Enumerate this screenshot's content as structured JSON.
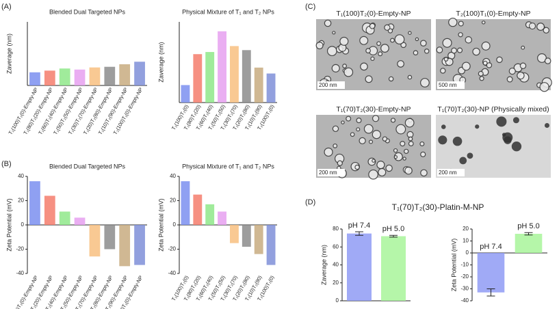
{
  "panel_labels": [
    "(A)",
    "(B)",
    "(C)",
    "(D)"
  ],
  "panel_d_title": "T₁(70)T₂(30)-Platin-M-NP",
  "micrographs": [
    {
      "caption": "T₁(100)T₂(0)-Empty-NP",
      "scale": "200 nm"
    },
    {
      "caption": "T₂(100)T₁(0)-Empty-NP",
      "scale": "500 nm"
    },
    {
      "caption": "T₁(70)T₂(30)-Empty-NP",
      "scale": "200 nm"
    },
    {
      "caption": "T₁(70)T₂(30)-NP (Physically mixed)",
      "scale": "200 nm"
    }
  ],
  "chart_data": [
    {
      "type": "bar",
      "title": "Blended Dual Targeted NPs",
      "ylabel": "Zaverage (nm)",
      "categories": [
        "T₁(100)T₂(0)-Empty-NP",
        "T₁(80)T₂(20)-Empty-NP",
        "T₁(60)T₂(40)-Empty-NP",
        "T₁(50)T₂(50)-Empty-NP",
        "T₁(30)T₂(70)-Empty-NP",
        "T₁(20)T₂(80)-Empty-NP",
        "T₁(10)T₂(90)-Empty-NP",
        "T₂(100)T₁(0)-Empty-NP"
      ],
      "values": [
        62,
        70,
        80,
        75,
        85,
        88,
        100,
        112
      ],
      "colors": [
        "#7b8ff0",
        "#f47c6c",
        "#8fe88a",
        "#e6a0f0",
        "#f8c080",
        "#8c8c8c",
        "#c8ab80",
        "#7f8fd8"
      ],
      "ylim": [
        0,
        300
      ],
      "yticks": []
    },
    {
      "type": "bar",
      "title": "Physical Mixture of T₁ and T₂ NPs",
      "ylabel": "Zaverage (nm)",
      "categories": [
        "T₁(100)T₂(0)",
        "T₁(80)T₂(20)",
        "T₁(60)T₂(40)",
        "T₁(50)T₂(50)",
        "T₁(30)T₂(70)",
        "T₁(20)T₂(80)",
        "T₁(10)T₂(90)",
        "T₂(100)T₁(0)"
      ],
      "values": [
        65,
        180,
        188,
        265,
        210,
        195,
        130,
        108
      ],
      "colors": [
        "#7b8ff0",
        "#f47c6c",
        "#8fe88a",
        "#e6a0f0",
        "#f8c080",
        "#8c8c8c",
        "#c8ab80",
        "#7f8fd8"
      ],
      "ylim": [
        0,
        300
      ],
      "yticks": []
    },
    {
      "type": "bar",
      "title": "Blended Dual Targeted NPs",
      "ylabel": "Zeta Potential (mV)",
      "categories": [
        "T₁(100)T₂(0)-Empty-NP",
        "T₁(80)T₂(20)-Empty-NP",
        "T₁(60)T₂(40)-Empty-NP",
        "T₁(50)T₂(50)-Empty-NP",
        "T₁(30)T₂(70)-Empty-NP",
        "T₁(20)T₂(80)-Empty-NP",
        "T₁(10)T₂(90)-Empty-NP",
        "T₂(100)T₁(0)-Empty-NP"
      ],
      "values": [
        36,
        24,
        11,
        6,
        -26,
        -20,
        -34,
        -33
      ],
      "colors": [
        "#7b8ff0",
        "#f47c6c",
        "#8fe88a",
        "#e6a0f0",
        "#f8c080",
        "#8c8c8c",
        "#c8ab80",
        "#7f8fd8"
      ],
      "ylim": [
        -40,
        40
      ],
      "yticks": [
        -40,
        -20,
        0,
        20,
        40
      ]
    },
    {
      "type": "bar",
      "title": "Physical Mixture of T₁ and T₂ NPs",
      "ylabel": "Zeta Potential (mV)",
      "categories": [
        "T₁(100)T₂(0)",
        "T₁(80)T₂(20)",
        "T₁(60)T₂(40)",
        "T₁(50)T₂(50)",
        "T₁(30)T₂(70)",
        "T₁(20)T₂(80)",
        "T₁(10)T₂(90)",
        "T₂(100)T₁(0)"
      ],
      "values": [
        36,
        25,
        17,
        11,
        -15,
        -18,
        -24,
        -33
      ],
      "colors": [
        "#7b8ff0",
        "#f47c6c",
        "#8fe88a",
        "#e6a0f0",
        "#f8c080",
        "#8c8c8c",
        "#c8ab80",
        "#7f8fd8"
      ],
      "ylim": [
        -40,
        40
      ],
      "yticks": [
        -40,
        -20,
        0,
        20,
        40
      ]
    },
    {
      "type": "bar",
      "ylabel": "Zaverage (nm)",
      "categories": [
        "pH 7.4",
        "pH 5.0"
      ],
      "values": [
        75,
        72
      ],
      "errors": [
        2,
        1
      ],
      "colors": [
        "#8f9bf5",
        "#a8f59a"
      ],
      "ylim": [
        0,
        80
      ],
      "yticks": [
        0,
        20,
        40,
        60,
        80
      ]
    },
    {
      "type": "bar",
      "ylabel": "Zeta Potential (mV)",
      "categories": [
        "pH 7.4",
        "pH 5.0"
      ],
      "values": [
        -33,
        16
      ],
      "errors": [
        3,
        1
      ],
      "colors": [
        "#8f9bf5",
        "#a8f59a"
      ],
      "ylim": [
        -40,
        20
      ],
      "yticks": [
        -40,
        -30,
        -20,
        -10,
        0,
        10,
        20
      ]
    }
  ]
}
